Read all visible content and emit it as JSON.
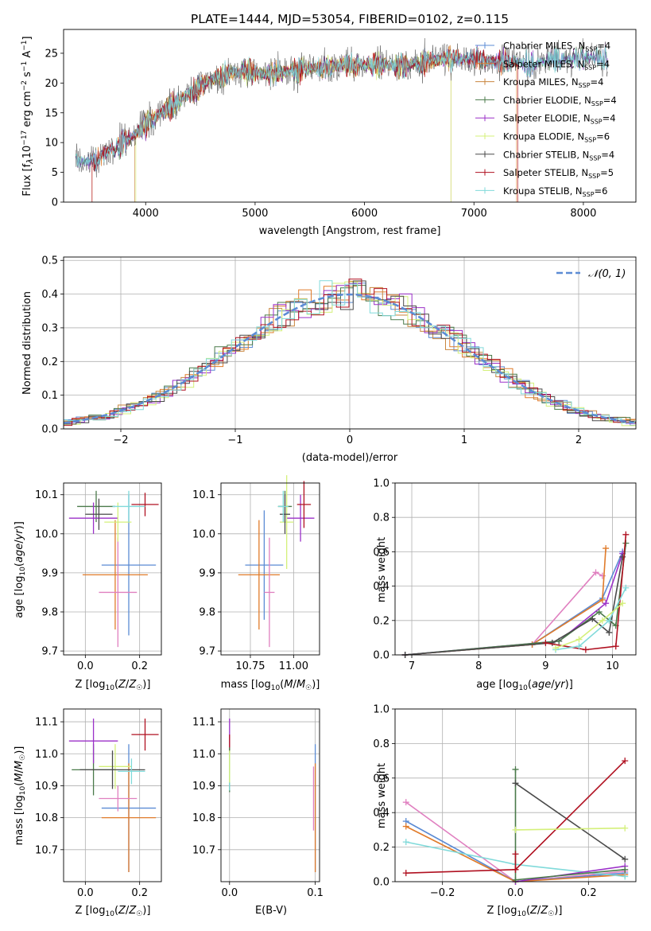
{
  "colors": {
    "c1": "#5b8bd4",
    "c2": "#e07b2a",
    "c3": "#c9863e",
    "c4": "#4a7a4a",
    "c5": "#9b30c8",
    "c6": "#d4f07a",
    "c7": "#4a4a4a",
    "c8": "#b01020",
    "c9": "#80dada",
    "c10": "#e080c0"
  },
  "chart_data": [
    {
      "type": "line",
      "title": "PLATE=1444, MJD=53054, FIBERID=0102, z=0.115",
      "xlabel": "wavelength [Angstrom, rest frame]",
      "ylabel": "Flux [f_λ 10⁻¹⁷ erg cm⁻² s⁻¹ A⁻¹]",
      "xlim": [
        3250,
        8480
      ],
      "ylim": [
        0,
        29
      ],
      "xticks": [
        "4000",
        "5000",
        "6000",
        "7000",
        "8000"
      ],
      "yticks": [
        "0",
        "5",
        "10",
        "15",
        "20",
        "25"
      ],
      "legend": "upper-right",
      "series": [
        {
          "name": "Chabrier MILES, N_SSP=4",
          "color": "c1"
        },
        {
          "name": "Salpeter MILES, N_SSP=4",
          "color": "c2"
        },
        {
          "name": "Kroupa MILES, N_SSP=4",
          "color": "c3"
        },
        {
          "name": "Chabrier ELODIE, N_SSP=4",
          "color": "c4"
        },
        {
          "name": "Salpeter ELODIE, N_SSP=4",
          "color": "c5"
        },
        {
          "name": "Kroupa ELODIE, N_SSP=6",
          "color": "c6"
        },
        {
          "name": "Chabrier STELIB, N_SSP=4",
          "color": "c7"
        },
        {
          "name": "Salpeter STELIB, N_SSP=5",
          "color": "c8"
        },
        {
          "name": "Kroupa STELIB, N_SSP=6",
          "color": "c9"
        }
      ],
      "continuum": {
        "x": [
          3350,
          3500,
          3650,
          3800,
          3950,
          4100,
          4300,
          4500,
          4700,
          4900,
          5100,
          5300,
          5500,
          5800,
          6100,
          6400,
          6700,
          7000,
          7300,
          7600,
          7900,
          8200
        ],
        "y": [
          7,
          6.5,
          8.5,
          10,
          12,
          14.5,
          17,
          19.5,
          21.5,
          22,
          21.5,
          22,
          22.5,
          23,
          23,
          23,
          24,
          24,
          23.5,
          23.5,
          24,
          24.5
        ]
      }
    },
    {
      "type": "histogram",
      "xlabel": "(data-model)/error",
      "ylabel": "Normed distribution",
      "xlim": [
        -2.5,
        2.5
      ],
      "ylim": [
        0,
        0.51
      ],
      "xticks": [
        "−2",
        "−1",
        "0",
        "1",
        "2"
      ],
      "yticks": [
        "0.0",
        "0.1",
        "0.2",
        "0.3",
        "0.4",
        "0.5"
      ],
      "bin_width": 0.11,
      "legend": "upper-right",
      "reference": {
        "name": "𝒩(0, 1)",
        "color": "c1",
        "mean": 0,
        "sigma": 1
      }
    },
    {
      "type": "scatter",
      "xlabel": "Z [log₁₀(Z/Z☉)]",
      "ylabel": "age  [log₁₀(age/yr)]",
      "xlim": [
        -0.08,
        0.28
      ],
      "ylim": [
        9.69,
        10.13
      ],
      "xticks": [
        {
          "v": 0,
          "label": "0.0"
        },
        {
          "v": 0.2,
          "label": "0.2"
        }
      ],
      "yticks": [
        {
          "v": 9.7,
          "label": "9.7"
        },
        {
          "v": 9.8,
          "label": "9.8"
        },
        {
          "v": 9.9,
          "label": "9.9"
        },
        {
          "v": 10.0,
          "label": "10.0"
        },
        {
          "v": 10.1,
          "label": "10.1"
        }
      ],
      "points": [
        {
          "x": 0.16,
          "y": 9.92,
          "xerr": 0.1,
          "yerr": 0.18,
          "color": "c1"
        },
        {
          "x": 0.11,
          "y": 9.895,
          "xerr": 0.12,
          "yerr": 0.14,
          "color": "c2"
        },
        {
          "x": 0.12,
          "y": 9.85,
          "xerr": 0.07,
          "yerr": 0.14,
          "color": "c10"
        },
        {
          "x": 0.04,
          "y": 10.07,
          "xerr": 0.07,
          "yerr": 0.04,
          "color": "c4"
        },
        {
          "x": 0.03,
          "y": 10.04,
          "xerr": 0.09,
          "yerr": 0.04,
          "color": "c5"
        },
        {
          "x": 0.12,
          "y": 10.03,
          "xerr": 0.05,
          "yerr": 0.05,
          "color": "c6"
        },
        {
          "x": 0.05,
          "y": 10.05,
          "xerr": 0.05,
          "yerr": 0.04,
          "color": "c7"
        },
        {
          "x": 0.22,
          "y": 10.075,
          "xerr": 0.05,
          "yerr": 0.03,
          "color": "c8"
        },
        {
          "x": 0.16,
          "y": 10.07,
          "xerr": 0.06,
          "yerr": 0.04,
          "color": "c9"
        }
      ]
    },
    {
      "type": "scatter",
      "xlabel": "mass [log₁₀(M/M☉)]",
      "ylabel": "",
      "xlim": [
        10.58,
        11.15
      ],
      "ylim": [
        9.69,
        10.13
      ],
      "xticks": [
        {
          "v": 10.75,
          "label": "10.75"
        },
        {
          "v": 11.0,
          "label": "11.00"
        }
      ],
      "yticks": [
        {
          "v": 9.7,
          "label": "9.7"
        },
        {
          "v": 9.8,
          "label": "9.8"
        },
        {
          "v": 9.9,
          "label": "9.9"
        },
        {
          "v": 10.0,
          "label": "10.0"
        },
        {
          "v": 10.1,
          "label": "10.1"
        }
      ],
      "points": [
        {
          "x": 10.83,
          "y": 9.92,
          "xerr": 0.11,
          "yerr": 0.14,
          "color": "c1"
        },
        {
          "x": 10.8,
          "y": 9.895,
          "xerr": 0.12,
          "yerr": 0.14,
          "color": "c2"
        },
        {
          "x": 10.86,
          "y": 9.85,
          "xerr": 0.03,
          "yerr": 0.14,
          "color": "c10"
        },
        {
          "x": 10.95,
          "y": 10.07,
          "xerr": 0.04,
          "yerr": 0.04,
          "color": "c4"
        },
        {
          "x": 11.04,
          "y": 10.04,
          "xerr": 0.08,
          "yerr": 0.06,
          "color": "c5"
        },
        {
          "x": 10.96,
          "y": 10.03,
          "xerr": 0.04,
          "yerr": 0.12,
          "color": "c6"
        },
        {
          "x": 10.95,
          "y": 10.05,
          "xerr": 0.03,
          "yerr": 0.05,
          "color": "c7"
        },
        {
          "x": 11.06,
          "y": 10.075,
          "xerr": 0.04,
          "yerr": 0.06,
          "color": "c8"
        },
        {
          "x": 10.94,
          "y": 10.07,
          "xerr": 0.03,
          "yerr": 0.04,
          "color": "c9"
        }
      ]
    },
    {
      "type": "line",
      "xlabel": "age  [log₁₀(age/yr)]",
      "ylabel": "mass weight",
      "xlim": [
        6.75,
        10.35
      ],
      "ylim": [
        0,
        1
      ],
      "xticks": [
        {
          "v": 7,
          "label": "7"
        },
        {
          "v": 8,
          "label": "8"
        },
        {
          "v": 9,
          "label": "9"
        },
        {
          "v": 10,
          "label": "10"
        }
      ],
      "yticks": [
        {
          "v": 0,
          "label": "0.0"
        },
        {
          "v": 0.2,
          "label": "0.2"
        },
        {
          "v": 0.4,
          "label": "0.4"
        },
        {
          "v": 0.6,
          "label": "0.6"
        },
        {
          "v": 0.8,
          "label": "0.8"
        },
        {
          "v": 1,
          "label": "1.0"
        }
      ],
      "series": [
        {
          "color": "c10",
          "x": [
            6.9,
            8.8,
            9.75,
            9.85
          ],
          "y": [
            0,
            0.06,
            0.48,
            0.46
          ]
        },
        {
          "color": "c1",
          "x": [
            6.9,
            8.8,
            9.85,
            10.15
          ],
          "y": [
            0,
            0.06,
            0.33,
            0.6
          ]
        },
        {
          "color": "c2",
          "x": [
            6.9,
            8.8,
            9.85,
            9.9
          ],
          "y": [
            0,
            0.06,
            0.32,
            0.62
          ]
        },
        {
          "color": "c5",
          "x": [
            6.9,
            9.2,
            9.9,
            10.15
          ],
          "y": [
            0,
            0.08,
            0.3,
            0.59
          ]
        },
        {
          "color": "c4",
          "x": [
            6.9,
            9.2,
            9.8,
            10.05,
            10.2
          ],
          "y": [
            0,
            0.08,
            0.25,
            0.17,
            0.65
          ]
        },
        {
          "color": "c7",
          "x": [
            6.9,
            9.1,
            9.7,
            9.95,
            10.15
          ],
          "y": [
            0,
            0.07,
            0.21,
            0.13,
            0.57
          ]
        },
        {
          "color": "c8",
          "x": [
            9.0,
            9.6,
            10.05,
            10.2
          ],
          "y": [
            0.07,
            0.03,
            0.05,
            0.7
          ]
        },
        {
          "color": "c9",
          "x": [
            9.15,
            9.5,
            9.95,
            10.2
          ],
          "y": [
            0.03,
            0.05,
            0.2,
            0.39
          ]
        },
        {
          "color": "c6",
          "x": [
            9.15,
            9.5,
            9.85,
            10.15
          ],
          "y": [
            0.04,
            0.09,
            0.2,
            0.3
          ]
        }
      ]
    },
    {
      "type": "scatter",
      "xlabel": "Z [log₁₀(Z/Z☉)]",
      "ylabel": "mass [log₁₀(M/M☉)]",
      "xlim": [
        -0.08,
        0.28
      ],
      "ylim": [
        10.6,
        11.14
      ],
      "xticks": [
        {
          "v": 0,
          "label": "0.0"
        },
        {
          "v": 0.2,
          "label": "0.2"
        }
      ],
      "yticks": [
        {
          "v": 10.7,
          "label": "10.7"
        },
        {
          "v": 10.8,
          "label": "10.8"
        },
        {
          "v": 10.9,
          "label": "10.9"
        },
        {
          "v": 11.0,
          "label": "11.0"
        },
        {
          "v": 11.1,
          "label": "11.1"
        }
      ],
      "points": [
        {
          "x": 0.16,
          "y": 10.83,
          "xerr": 0.1,
          "yerr": 0.2,
          "color": "c1"
        },
        {
          "x": 0.16,
          "y": 10.8,
          "xerr": 0.1,
          "yerr": 0.17,
          "color": "c2"
        },
        {
          "x": 0.12,
          "y": 10.86,
          "xerr": 0.07,
          "yerr": 0.04,
          "color": "c10"
        },
        {
          "x": 0.03,
          "y": 10.95,
          "xerr": 0.08,
          "yerr": 0.08,
          "color": "c4"
        },
        {
          "x": 0.03,
          "y": 11.04,
          "xerr": 0.09,
          "yerr": 0.07,
          "color": "c5"
        },
        {
          "x": 0.11,
          "y": 10.96,
          "xerr": 0.06,
          "yerr": 0.07,
          "color": "c6"
        },
        {
          "x": 0.1,
          "y": 10.95,
          "xerr": 0.12,
          "yerr": 0.06,
          "color": "c7"
        },
        {
          "x": 0.22,
          "y": 11.06,
          "xerr": 0.05,
          "yerr": 0.05,
          "color": "c8"
        },
        {
          "x": 0.17,
          "y": 10.945,
          "xerr": 0.05,
          "yerr": 0.04,
          "color": "c9"
        }
      ]
    },
    {
      "type": "scatter",
      "xlabel": "E(B-V)",
      "ylabel": "",
      "xlim": [
        -0.01,
        0.105
      ],
      "ylim": [
        10.6,
        11.14
      ],
      "xticks": [
        {
          "v": 0,
          "label": "0.0"
        },
        {
          "v": 0.1,
          "label": "0.1"
        }
      ],
      "yticks": [
        {
          "v": 10.7,
          "label": "10.7"
        },
        {
          "v": 10.8,
          "label": "10.8"
        },
        {
          "v": 10.9,
          "label": "10.9"
        },
        {
          "v": 11.0,
          "label": "11.0"
        },
        {
          "v": 11.1,
          "label": "11.1"
        }
      ],
      "points": [
        {
          "x": 0.0,
          "y": 11.04,
          "xerr": 0,
          "yerr": 0.07,
          "color": "c5"
        },
        {
          "x": 0.0,
          "y": 11.0,
          "xerr": 0,
          "yerr": 0.06,
          "color": "c8"
        },
        {
          "x": 0.0,
          "y": 10.95,
          "xerr": 0,
          "yerr": 0.07,
          "color": "c4"
        },
        {
          "x": 0.0,
          "y": 10.945,
          "xerr": 0,
          "yerr": 0.06,
          "color": "c9"
        },
        {
          "x": 0.0,
          "y": 10.96,
          "xerr": 0,
          "yerr": 0.05,
          "color": "c6"
        },
        {
          "x": 0.1,
          "y": 10.83,
          "xerr": 0,
          "yerr": 0.2,
          "color": "c1"
        },
        {
          "x": 0.1,
          "y": 10.8,
          "xerr": 0,
          "yerr": 0.17,
          "color": "c2"
        },
        {
          "x": 0.098,
          "y": 10.86,
          "xerr": 0,
          "yerr": 0.1,
          "color": "c10"
        }
      ]
    },
    {
      "type": "line",
      "xlabel": "Z [log₁₀(Z/Z☉)]",
      "ylabel": "mass weight",
      "xlim": [
        -0.33,
        0.33
      ],
      "ylim": [
        0,
        1
      ],
      "xticks": [
        {
          "v": -0.2,
          "label": "−0.2"
        },
        {
          "v": 0,
          "label": "0.0"
        },
        {
          "v": 0.2,
          "label": "0.2"
        }
      ],
      "yticks": [
        {
          "v": 0,
          "label": "0.0"
        },
        {
          "v": 0.2,
          "label": "0.2"
        },
        {
          "v": 0.4,
          "label": "0.4"
        },
        {
          "v": 0.6,
          "label": "0.6"
        },
        {
          "v": 0.8,
          "label": "0.8"
        },
        {
          "v": 1,
          "label": "1.0"
        }
      ],
      "series": [
        {
          "color": "c10",
          "x": [
            -0.3,
            0.0,
            0.3
          ],
          "y": [
            0.46,
            0.0,
            0.06
          ]
        },
        {
          "color": "c1",
          "x": [
            -0.3,
            0.0,
            0.3
          ],
          "y": [
            0.35,
            0.0,
            0.05
          ]
        },
        {
          "color": "c2",
          "x": [
            -0.3,
            0.0,
            0.3
          ],
          "y": [
            0.32,
            0.0,
            0.04
          ]
        },
        {
          "color": "c9",
          "x": [
            -0.3,
            0.0,
            0.3
          ],
          "y": [
            0.23,
            0.1,
            0.03
          ]
        },
        {
          "color": "c5",
          "x": [
            0.0,
            0.3
          ],
          "y": [
            0.0,
            0.09
          ]
        },
        {
          "color": "c4",
          "x": [
            0.0,
            0.0,
            0.3
          ],
          "y": [
            0.65,
            0.01,
            0.07
          ]
        },
        {
          "color": "c7",
          "x": [
            0.0,
            0.3
          ],
          "y": [
            0.57,
            0.13
          ]
        },
        {
          "color": "c8",
          "x": [
            -0.3,
            0.0,
            0.3
          ],
          "y": [
            0.05,
            0.07,
            0.7
          ]
        },
        {
          "color": "c8",
          "x": [
            0.0,
            0.0
          ],
          "y": [
            0.07,
            0.16
          ]
        },
        {
          "color": "c6",
          "x": [
            0.0,
            0.3
          ],
          "y": [
            0.3,
            0.31
          ]
        }
      ]
    }
  ]
}
